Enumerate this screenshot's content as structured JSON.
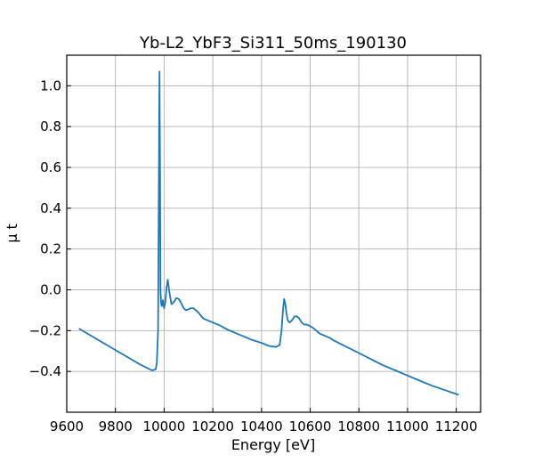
{
  "chart_data": {
    "type": "line",
    "title": "Yb-L2_YbF3_Si311_50ms_190130",
    "xlabel": "Energy [eV]",
    "ylabel": "μ t",
    "xlim": [
      9600,
      11300
    ],
    "ylim": [
      -0.6,
      1.15
    ],
    "xticks": [
      9600,
      9800,
      10000,
      10200,
      10400,
      10600,
      10800,
      11000,
      11200
    ],
    "yticks": [
      -0.4,
      -0.2,
      0.0,
      0.2,
      0.4,
      0.6,
      0.8,
      1.0
    ],
    "xtick_labels": [
      "9600",
      "9800",
      "10000",
      "10200",
      "10400",
      "10600",
      "10800",
      "11000",
      "11200"
    ],
    "ytick_labels": [
      "−0.4",
      "−0.2",
      "0.0",
      "0.2",
      "0.4",
      "0.6",
      "0.8",
      "1.0"
    ],
    "grid": true,
    "series": [
      {
        "color": "#1f77b4",
        "x": [
          9650,
          9700,
          9750,
          9800,
          9850,
          9900,
          9950,
          9965,
          9970,
          9975,
          9977,
          9979,
          9981,
          9983,
          9985,
          9988,
          9991,
          9995,
          10000,
          10005,
          10010,
          10015,
          10020,
          10030,
          10040,
          10050,
          10060,
          10070,
          10080,
          10090,
          10100,
          10110,
          10120,
          10130,
          10140,
          10160,
          10180,
          10200,
          10230,
          10260,
          10280,
          10300,
          10330,
          10360,
          10400,
          10430,
          10460,
          10475,
          10482,
          10488,
          10493,
          10498,
          10503,
          10508,
          10515,
          10525,
          10535,
          10545,
          10555,
          10565,
          10575,
          10585,
          10595,
          10610,
          10625,
          10640,
          10660,
          10680,
          10700,
          10750,
          10800,
          10850,
          10900,
          10950,
          11000,
          11050,
          11100,
          11150,
          11210
        ],
        "y": [
          -0.19,
          -0.225,
          -0.26,
          -0.295,
          -0.33,
          -0.365,
          -0.395,
          -0.39,
          -0.36,
          -0.2,
          0.2,
          0.7,
          1.07,
          0.6,
          0.0,
          -0.07,
          -0.08,
          -0.05,
          -0.09,
          -0.06,
          0.01,
          0.05,
          0.0,
          -0.07,
          -0.06,
          -0.04,
          -0.045,
          -0.065,
          -0.09,
          -0.1,
          -0.095,
          -0.09,
          -0.09,
          -0.1,
          -0.11,
          -0.14,
          -0.15,
          -0.16,
          -0.175,
          -0.195,
          -0.205,
          -0.215,
          -0.23,
          -0.245,
          -0.26,
          -0.275,
          -0.28,
          -0.27,
          -0.2,
          -0.1,
          -0.045,
          -0.07,
          -0.12,
          -0.15,
          -0.16,
          -0.15,
          -0.13,
          -0.13,
          -0.14,
          -0.16,
          -0.17,
          -0.17,
          -0.175,
          -0.185,
          -0.2,
          -0.215,
          -0.225,
          -0.235,
          -0.25,
          -0.28,
          -0.31,
          -0.34,
          -0.37,
          -0.395,
          -0.42,
          -0.445,
          -0.47,
          -0.49,
          -0.515
        ]
      }
    ]
  }
}
